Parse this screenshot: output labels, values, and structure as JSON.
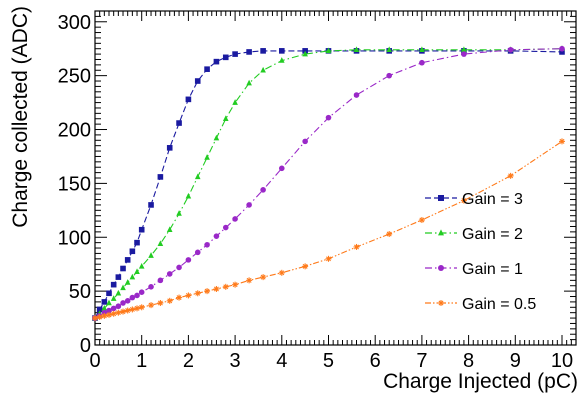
{
  "chart_data": {
    "type": "scatter",
    "title": "",
    "xlabel": "Charge Injected (pC)",
    "ylabel": "Charge collected (ADC)",
    "xlim": [
      0,
      10.3
    ],
    "ylim": [
      0,
      310
    ],
    "x_ticks": [
      "0",
      "1",
      "2",
      "3",
      "4",
      "5",
      "6",
      "7",
      "8",
      "9",
      "10"
    ],
    "y_ticks": [
      "0",
      "50",
      "100",
      "150",
      "200",
      "250",
      "300"
    ],
    "grid": false,
    "legend_position": "right-center",
    "series": [
      {
        "name": "Gain = 3",
        "color": "#1a1aa0",
        "marker": "square",
        "line": "dashed",
        "x": [
          0.0,
          0.1,
          0.2,
          0.3,
          0.4,
          0.5,
          0.6,
          0.7,
          0.8,
          0.9,
          1.0,
          1.2,
          1.4,
          1.6,
          1.8,
          2.0,
          2.2,
          2.4,
          2.6,
          2.8,
          3.0,
          3.3,
          3.6,
          4.0,
          4.5,
          5.0,
          5.6,
          6.3,
          7.0,
          7.9,
          8.9,
          10.0
        ],
        "values": [
          25,
          33,
          40,
          48,
          56,
          63,
          71,
          79,
          87,
          95,
          107,
          130,
          156,
          183,
          206,
          228,
          245,
          256,
          263,
          267,
          270,
          272,
          273,
          273,
          273,
          273,
          273,
          273,
          273,
          273,
          273,
          272
        ]
      },
      {
        "name": "Gain = 2",
        "color": "#22cc22",
        "marker": "triangle",
        "line": "dashdot",
        "x": [
          0.0,
          0.1,
          0.2,
          0.3,
          0.4,
          0.5,
          0.6,
          0.7,
          0.8,
          0.9,
          1.0,
          1.2,
          1.4,
          1.6,
          1.8,
          2.0,
          2.2,
          2.4,
          2.6,
          2.8,
          3.0,
          3.3,
          3.6,
          4.0,
          4.5,
          5.0,
          5.6,
          6.3,
          7.0,
          7.9,
          8.9,
          10.0
        ],
        "values": [
          25,
          29,
          34,
          39,
          43,
          48,
          53,
          58,
          63,
          68,
          73,
          83,
          94,
          107,
          122,
          138,
          156,
          174,
          192,
          210,
          225,
          243,
          255,
          264,
          270,
          273,
          274,
          274,
          274,
          274,
          274,
          275
        ]
      },
      {
        "name": "Gain = 1",
        "color": "#9a28c8",
        "marker": "circle",
        "line": "dashdot",
        "x": [
          0.0,
          0.1,
          0.2,
          0.3,
          0.4,
          0.5,
          0.6,
          0.7,
          0.8,
          0.9,
          1.0,
          1.2,
          1.4,
          1.6,
          1.8,
          2.0,
          2.2,
          2.4,
          2.6,
          2.8,
          3.0,
          3.3,
          3.6,
          4.0,
          4.5,
          5.0,
          5.6,
          6.3,
          7.0,
          7.9,
          8.9,
          10.0
        ],
        "values": [
          25,
          27,
          30,
          32,
          34,
          36,
          39,
          41,
          44,
          46,
          49,
          54,
          60,
          66,
          72,
          79,
          86,
          93,
          101,
          109,
          117,
          130,
          144,
          164,
          189,
          211,
          232,
          250,
          262,
          270,
          274,
          275
        ]
      },
      {
        "name": "Gain = 0.5",
        "color": "#ff7a1a",
        "marker": "star",
        "line": "dashdotdot",
        "x": [
          0.0,
          0.1,
          0.2,
          0.3,
          0.4,
          0.5,
          0.6,
          0.7,
          0.8,
          0.9,
          1.0,
          1.2,
          1.4,
          1.6,
          1.8,
          2.0,
          2.2,
          2.4,
          2.6,
          2.8,
          3.0,
          3.3,
          3.6,
          4.0,
          4.5,
          5.0,
          5.6,
          6.3,
          7.0,
          7.9,
          8.9,
          10.0
        ],
        "values": [
          25,
          26,
          27,
          28,
          29,
          30,
          31,
          32,
          33,
          34,
          35,
          37,
          39,
          41,
          44,
          46,
          48,
          50,
          52,
          54,
          56,
          60,
          63,
          67,
          73,
          80,
          91,
          103,
          116,
          134,
          157,
          189
        ]
      }
    ]
  }
}
